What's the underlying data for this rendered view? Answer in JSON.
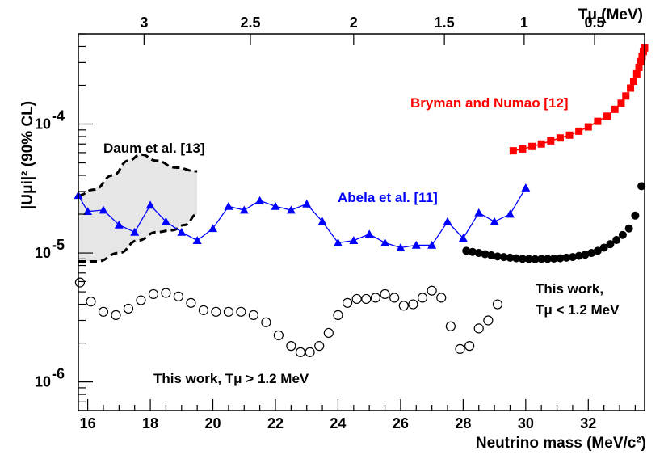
{
  "chart_data": {
    "type": "scatter",
    "xlabel": "Neutrino mass (MeV/c²)",
    "ylabel": "|Uμi|² (90% CL)",
    "top_axis_label": "Tμ (MeV)",
    "xlim": [
      15.7,
      33.8
    ],
    "ylim": [
      6e-07,
      0.0005
    ],
    "yscale": "log",
    "x_ticks": [
      "16",
      "18",
      "20",
      "22",
      "24",
      "26",
      "28",
      "30",
      "32"
    ],
    "top_ticks": [
      {
        "label": "3",
        "mass": 17.8
      },
      {
        "label": "2.5",
        "mass": 21.2
      },
      {
        "label": "2",
        "mass": 24.5
      },
      {
        "label": "1.5",
        "mass": 27.4
      },
      {
        "label": "1",
        "mass": 29.95
      },
      {
        "label": "0.5",
        "mass": 32.2
      }
    ],
    "y_ticks": [
      {
        "label": "10",
        "exp": "-6",
        "value": 1e-06
      },
      {
        "label": "10",
        "exp": "-5",
        "value": 1e-05
      },
      {
        "label": "10",
        "exp": "-4",
        "value": 0.0001
      }
    ],
    "annotations": {
      "bryman": "Bryman and Numao [12]",
      "daum": "Daum et al. [13]",
      "abela": "Abela et al. [11]",
      "this_low_1": "This work,",
      "this_low_2": "Tμ < 1.2 MeV",
      "this_high": "This work, Tμ > 1.2 MeV"
    },
    "series": [
      {
        "name": "Bryman and Numao [12]",
        "color": "#ff0000",
        "marker": "square",
        "x": [
          29.6,
          29.9,
          30.2,
          30.5,
          30.8,
          31.1,
          31.4,
          31.7,
          32.0,
          32.3,
          32.6,
          32.85,
          33.05,
          33.2,
          33.35,
          33.45,
          33.55,
          33.62,
          33.68,
          33.72,
          33.76,
          33.8
        ],
        "y": [
          6.2e-05,
          6.4e-05,
          6.7e-05,
          7e-05,
          7.4e-05,
          7.8e-05,
          8.2e-05,
          8.8e-05,
          9.5e-05,
          0.000105,
          0.000115,
          0.00013,
          0.000145,
          0.000165,
          0.00019,
          0.000215,
          0.000245,
          0.000275,
          0.000305,
          0.000335,
          0.000365,
          0.00039
        ]
      },
      {
        "name": "Abela et al. [11]",
        "color": "#0000ff",
        "marker": "triangle",
        "x": [
          15.7,
          16.0,
          16.5,
          17.0,
          17.5,
          18.0,
          18.5,
          19.0,
          19.5,
          20.0,
          20.5,
          21.0,
          21.5,
          22.0,
          22.5,
          23.0,
          23.5,
          24.0,
          24.5,
          25.0,
          25.5,
          26.0,
          26.5,
          27.0,
          27.5,
          28.0,
          28.5,
          29.0,
          29.5,
          30.0
        ],
        "y": [
          2.8e-05,
          2.1e-05,
          2.15e-05,
          1.65e-05,
          1.45e-05,
          2.35e-05,
          1.75e-05,
          1.45e-05,
          1.25e-05,
          1.55e-05,
          2.3e-05,
          2.15e-05,
          2.55e-05,
          2.3e-05,
          2.15e-05,
          2.4e-05,
          1.75e-05,
          1.2e-05,
          1.25e-05,
          1.4e-05,
          1.2e-05,
          1.1e-05,
          1.15e-05,
          1.15e-05,
          1.75e-05,
          1.3e-05,
          2.05e-05,
          1.75e-05,
          2e-05,
          3.2e-05
        ]
      },
      {
        "name": "This work, Tμ < 1.2 MeV",
        "color": "#000000",
        "marker": "filled-circle",
        "x": [
          28.1,
          28.3,
          28.5,
          28.7,
          28.9,
          29.1,
          29.3,
          29.5,
          29.7,
          29.9,
          30.1,
          30.3,
          30.5,
          30.7,
          30.9,
          31.1,
          31.3,
          31.5,
          31.7,
          31.9,
          32.1,
          32.3,
          32.5,
          32.7,
          32.9,
          33.1,
          33.3,
          33.5,
          33.7
        ],
        "y": [
          1.04e-05,
          1.02e-05,
          1e-05,
          9.8e-06,
          9.6e-06,
          9.4e-06,
          9.3e-06,
          9.2e-06,
          9.1e-06,
          9e-06,
          9e-06,
          8.95e-06,
          9e-06,
          9e-06,
          9.05e-06,
          9.1e-06,
          9.2e-06,
          9.3e-06,
          9.5e-06,
          9.7e-06,
          1e-05,
          1.04e-05,
          1.1e-05,
          1.17e-05,
          1.26e-05,
          1.38e-05,
          1.55e-05,
          1.95e-05,
          3.3e-05
        ]
      },
      {
        "name": "This work, Tμ > 1.2 MeV",
        "color": "#000000",
        "marker": "open-circle",
        "x": [
          15.75,
          16.1,
          16.5,
          16.9,
          17.3,
          17.7,
          18.1,
          18.5,
          18.9,
          19.3,
          19.7,
          20.1,
          20.5,
          20.9,
          21.3,
          21.7,
          22.1,
          22.5,
          22.8,
          23.1,
          23.4,
          23.7,
          24.0,
          24.3,
          24.6,
          24.9,
          25.2,
          25.5,
          25.8,
          26.1,
          26.4,
          26.7,
          27.0,
          27.3,
          27.6,
          27.9,
          28.2,
          28.5,
          28.8,
          29.1
        ],
        "y": [
          5.9e-06,
          4.2e-06,
          3.5e-06,
          3.3e-06,
          3.7e-06,
          4.3e-06,
          4.8e-06,
          4.9e-06,
          4.6e-06,
          4.1e-06,
          3.6e-06,
          3.5e-06,
          3.5e-06,
          3.5e-06,
          3.3e-06,
          2.9e-06,
          2.3e-06,
          1.9e-06,
          1.7e-06,
          1.7e-06,
          1.9e-06,
          2.4e-06,
          3.3e-06,
          4.1e-06,
          4.4e-06,
          4.4e-06,
          4.5e-06,
          4.8e-06,
          4.5e-06,
          3.9e-06,
          4e-06,
          4.5e-06,
          5.1e-06,
          4.5e-06,
          2.7e-06,
          1.8e-06,
          1.9e-06,
          2.6e-06,
          3e-06,
          4e-06
        ]
      }
    ],
    "daum_band": {
      "name": "Daum et al. [13]",
      "fill": "#e6e6e6",
      "upper": {
        "x": [
          15.7,
          16.2,
          16.8,
          17.3,
          17.7,
          18.2,
          18.8,
          19.5
        ],
        "y": [
          2.8e-05,
          3.1e-05,
          4e-05,
          5.2e-05,
          5.8e-05,
          5.2e-05,
          4.6e-05,
          4.3e-05
        ]
      },
      "lower": {
        "x": [
          15.7,
          16.3,
          17.0,
          17.6,
          18.2,
          18.7,
          19.1,
          19.5
        ],
        "y": [
          8.6e-06,
          8.6e-06,
          1e-05,
          1.25e-05,
          1.45e-05,
          1.5e-05,
          1.65e-05,
          2e-05
        ]
      }
    }
  }
}
